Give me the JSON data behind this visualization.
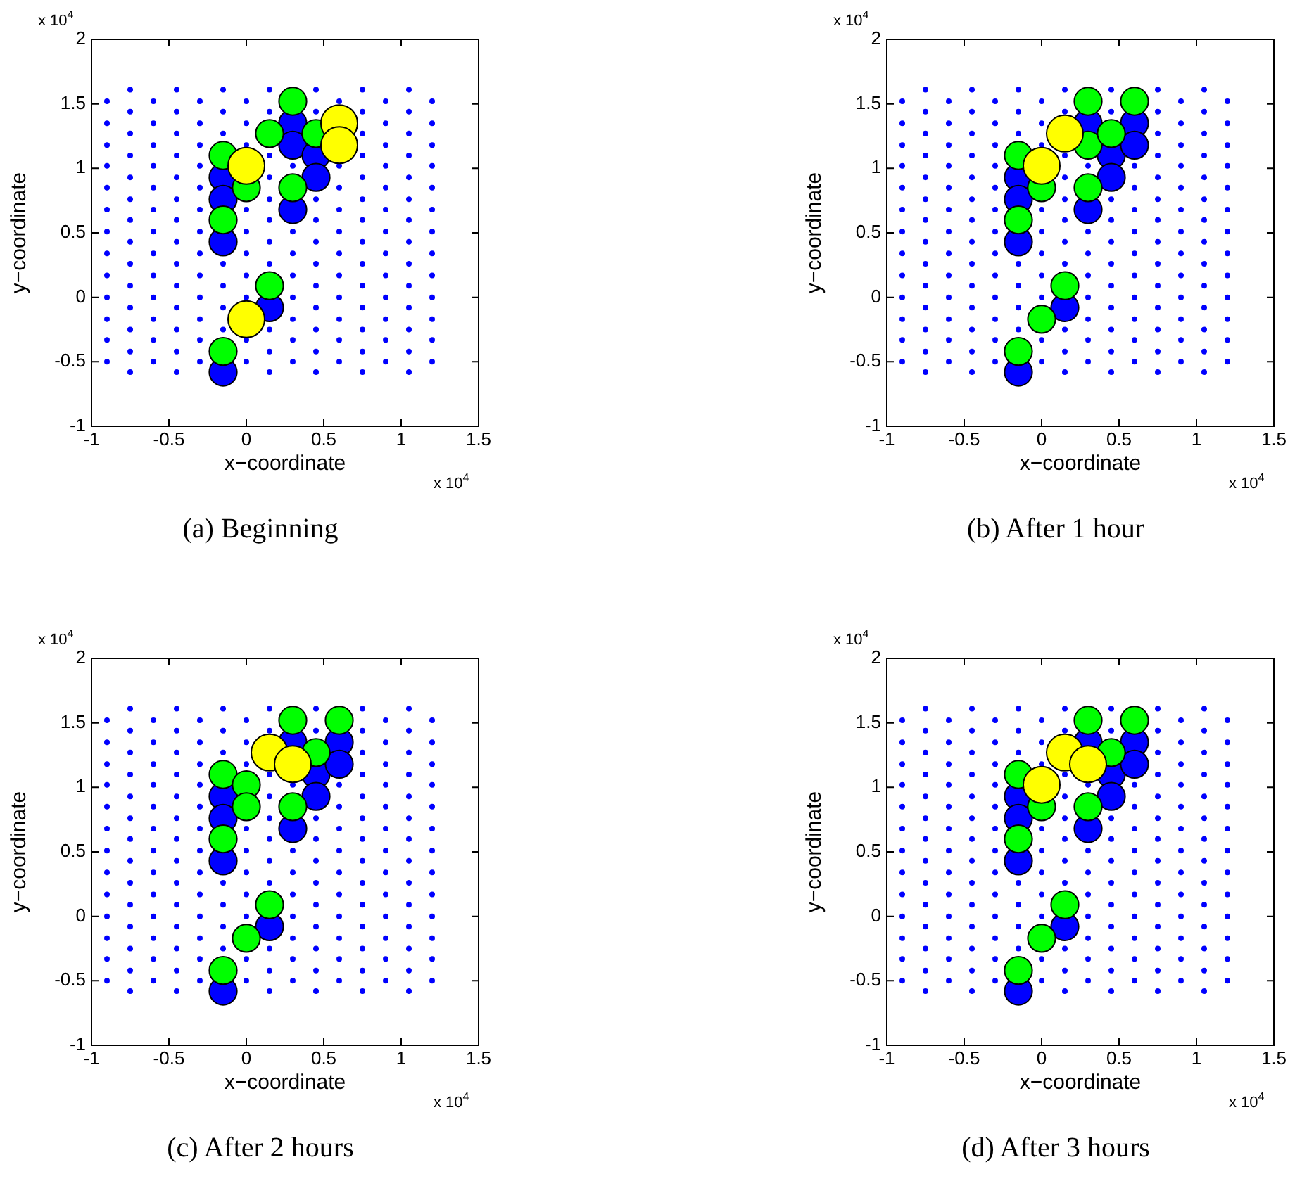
{
  "chart_data": [
    {
      "type": "bubble",
      "title": "(a) Beginning",
      "xlabel": "x−coordinate",
      "ylabel": "y−coordinate",
      "annotations": [
        "x 10$^{4}$",
        "x 10$^{4}$"
      ],
      "xlim": [
        -1,
        1.5
      ],
      "xticks": [
        -1,
        -0.5,
        0,
        0.5,
        1,
        1.5
      ],
      "ylim": [
        -1,
        2
      ],
      "yticks": [
        -1,
        -0.5,
        0,
        0.5,
        1,
        1.5,
        2
      ],
      "marker": "circle",
      "series": [
        {
          "type": "scatter",
          "color": "#0000ff",
          "x": [
            -0.9,
            -0.9,
            -0.9,
            -0.9,
            -0.9,
            -0.9,
            -0.9,
            -0.9,
            -0.9,
            -0.9,
            -0.9,
            -0.9,
            -0.9,
            -0.75,
            -0.75,
            -0.75,
            -0.75,
            -0.75,
            -0.75,
            -0.75,
            -0.75,
            -0.75,
            -0.75,
            -0.75,
            -0.75,
            -0.75,
            -0.75,
            -0.6,
            -0.6,
            -0.6,
            -0.6,
            -0.6,
            -0.6,
            -0.6,
            -0.6,
            -0.6,
            -0.6,
            -0.6,
            -0.6,
            -0.6,
            -0.45,
            -0.45,
            -0.45,
            -0.45,
            -0.45,
            -0.45,
            -0.45,
            -0.45,
            -0.45,
            -0.45,
            -0.45,
            -0.45,
            -0.45,
            -0.45,
            -0.3,
            -0.3,
            -0.3,
            -0.3,
            -0.3,
            -0.3,
            -0.3,
            -0.3,
            -0.3,
            -0.3,
            -0.3,
            -0.3,
            -0.3,
            -0.15,
            -0.15,
            -0.15,
            -0.15,
            -0.15,
            -0.15,
            -0.15,
            0,
            0,
            0,
            0,
            0,
            0,
            0,
            0,
            0,
            0,
            0.15,
            0.15,
            0.15,
            0.15,
            0.15,
            0.15,
            0.15,
            0.15,
            0.15,
            0.15,
            0.15,
            0.3,
            0.3,
            0.3,
            0.3,
            0.3,
            0.3,
            0.3,
            0.3,
            0.45,
            0.45,
            0.45,
            0.45,
            0.45,
            0.45,
            0.45,
            0.45,
            0.45,
            0.45,
            0.45,
            0.6,
            0.6,
            0.6,
            0.6,
            0.6,
            0.6,
            0.6,
            0.6,
            0.6,
            0.6,
            0.6,
            0.75,
            0.75,
            0.75,
            0.75,
            0.75,
            0.75,
            0.75,
            0.75,
            0.75,
            0.75,
            0.75,
            0.75,
            0.75,
            0.75,
            0.9,
            0.9,
            0.9,
            0.9,
            0.9,
            0.9,
            0.9,
            0.9,
            0.9,
            0.9,
            0.9,
            0.9,
            0.9,
            1.05,
            1.05,
            1.05,
            1.05,
            1.05,
            1.05,
            1.05,
            1.05,
            1.05,
            1.05,
            1.05,
            1.05,
            1.05,
            1.05,
            1.2,
            1.2,
            1.2,
            1.2,
            1.2,
            1.2,
            1.2,
            1.2,
            1.2,
            1.2,
            1.2,
            1.2,
            1.2
          ],
          "values": [
            -0.5,
            -0.33,
            -0.17,
            0,
            0.17,
            0.34,
            0.51,
            0.68,
            0.85,
            1.02,
            1.18,
            1.35,
            1.52,
            -0.58,
            -0.42,
            -0.25,
            -0.08,
            0.09,
            0.26,
            0.43,
            0.6,
            0.76,
            0.93,
            1.1,
            1.27,
            1.44,
            1.61,
            -0.5,
            -0.33,
            -0.17,
            0,
            0.17,
            0.34,
            0.51,
            0.68,
            0.85,
            1.02,
            1.18,
            1.35,
            1.52,
            -0.58,
            -0.42,
            -0.25,
            -0.08,
            0.09,
            0.26,
            0.43,
            0.6,
            0.76,
            0.93,
            1.1,
            1.27,
            1.44,
            1.61,
            -0.5,
            -0.33,
            -0.17,
            0,
            0.17,
            0.34,
            0.51,
            0.68,
            0.85,
            1.02,
            1.18,
            1.35,
            1.52,
            -0.25,
            -0.08,
            0.09,
            0.26,
            1.27,
            1.44,
            1.61,
            -0.5,
            -0.33,
            0,
            0.17,
            0.34,
            0.51,
            0.68,
            1.18,
            1.35,
            1.52,
            -0.58,
            -0.42,
            -0.25,
            0.26,
            0.43,
            0.6,
            0.76,
            0.93,
            1.1,
            1.44,
            1.61,
            -0.5,
            -0.33,
            -0.17,
            0,
            0.17,
            0.34,
            0.51,
            1.02,
            -0.58,
            -0.42,
            -0.25,
            -0.08,
            0.09,
            0.26,
            0.43,
            0.6,
            0.76,
            1.44,
            1.61,
            -0.5,
            -0.33,
            -0.17,
            0,
            0.17,
            0.34,
            0.51,
            0.68,
            0.85,
            1.02,
            1.52,
            -0.58,
            -0.42,
            -0.25,
            -0.08,
            0.09,
            0.26,
            0.43,
            0.6,
            0.76,
            0.93,
            1.1,
            1.27,
            1.44,
            1.61,
            -0.5,
            -0.33,
            -0.17,
            0,
            0.17,
            0.34,
            0.51,
            0.68,
            0.85,
            1.02,
            1.18,
            1.35,
            1.52,
            -0.58,
            -0.42,
            -0.25,
            -0.08,
            0.09,
            0.26,
            0.43,
            0.6,
            0.76,
            0.93,
            1.1,
            1.27,
            1.44,
            1.61,
            -0.5,
            -0.33,
            -0.17,
            0,
            0.17,
            0.34,
            0.51,
            0.68,
            0.85,
            1.02,
            1.18,
            1.35,
            1.52
          ]
        },
        {
          "color": "#0000ff",
          "x": [
            -0.15,
            -0.15,
            -0.15,
            0.15,
            -0.15,
            0.3,
            0.3,
            0.3,
            0.45,
            0.45
          ],
          "values": [
            0.93,
            0.76,
            0.43,
            -0.08,
            -0.58,
            1.35,
            1.18,
            0.68,
            1.1,
            0.93
          ],
          "sizes": [
            0.57,
            0.57,
            0.57,
            0.57,
            0.57,
            0.57,
            0.57,
            0.57,
            0.57,
            0.57
          ]
        },
        {
          "color": "#00ff00",
          "x": [
            -0.15,
            -0.15,
            0,
            0.15,
            0.3,
            0.3,
            0.45,
            0.15,
            -0.15
          ],
          "values": [
            1.1,
            0.6,
            0.85,
            1.27,
            1.52,
            0.85,
            1.27,
            0.09,
            -0.42
          ],
          "sizes": [
            0.57,
            0.57,
            0.57,
            0.57,
            0.57,
            0.57,
            0.57,
            0.57,
            0.57
          ]
        },
        {
          "color": "#ffff00",
          "x": [
            0,
            0.6,
            0.6,
            0
          ],
          "values": [
            1.02,
            1.35,
            1.18,
            -0.17
          ],
          "sizes": [
            1,
            1,
            1,
            1
          ]
        }
      ]
    },
    {
      "type": "bubble",
      "title": "(b) After 1 hour",
      "xlabel": "x−coordinate",
      "ylabel": "y−coordinate",
      "annotations": [
        "x 10$^{4}$",
        "x 10$^{4}$"
      ],
      "xlim": [
        -1,
        1.5
      ],
      "xticks": [
        -1,
        -0.5,
        0,
        0.5,
        1,
        1.5
      ],
      "ylim": [
        -1,
        2
      ],
      "yticks": [
        -1,
        -0.5,
        0,
        0.5,
        1,
        1.5,
        2
      ],
      "marker": "circle",
      "series": [
        {
          "type": "scatter",
          "color": "#0000ff",
          "x": [
            -0.9,
            -0.9,
            -0.9,
            -0.9,
            -0.9,
            -0.9,
            -0.9,
            -0.9,
            -0.9,
            -0.9,
            -0.9,
            -0.9,
            -0.9,
            -0.75,
            -0.75,
            -0.75,
            -0.75,
            -0.75,
            -0.75,
            -0.75,
            -0.75,
            -0.75,
            -0.75,
            -0.75,
            -0.75,
            -0.75,
            -0.75,
            -0.6,
            -0.6,
            -0.6,
            -0.6,
            -0.6,
            -0.6,
            -0.6,
            -0.6,
            -0.6,
            -0.6,
            -0.6,
            -0.6,
            -0.6,
            -0.45,
            -0.45,
            -0.45,
            -0.45,
            -0.45,
            -0.45,
            -0.45,
            -0.45,
            -0.45,
            -0.45,
            -0.45,
            -0.45,
            -0.45,
            -0.45,
            -0.3,
            -0.3,
            -0.3,
            -0.3,
            -0.3,
            -0.3,
            -0.3,
            -0.3,
            -0.3,
            -0.3,
            -0.3,
            -0.3,
            -0.3,
            -0.15,
            -0.15,
            -0.15,
            -0.15,
            -0.15,
            -0.15,
            -0.15,
            0,
            0,
            0,
            0,
            0,
            0,
            0,
            0,
            0,
            0,
            0.15,
            0.15,
            0.15,
            0.15,
            0.15,
            0.15,
            0.15,
            0.15,
            0.15,
            0.15,
            0.15,
            0.3,
            0.3,
            0.3,
            0.3,
            0.3,
            0.3,
            0.3,
            0.3,
            0.45,
            0.45,
            0.45,
            0.45,
            0.45,
            0.45,
            0.45,
            0.45,
            0.45,
            0.45,
            0.45,
            0.6,
            0.6,
            0.6,
            0.6,
            0.6,
            0.6,
            0.6,
            0.6,
            0.6,
            0.6,
            0.75,
            0.75,
            0.75,
            0.75,
            0.75,
            0.75,
            0.75,
            0.75,
            0.75,
            0.75,
            0.75,
            0.75,
            0.75,
            0.75,
            0.9,
            0.9,
            0.9,
            0.9,
            0.9,
            0.9,
            0.9,
            0.9,
            0.9,
            0.9,
            0.9,
            0.9,
            0.9,
            1.05,
            1.05,
            1.05,
            1.05,
            1.05,
            1.05,
            1.05,
            1.05,
            1.05,
            1.05,
            1.05,
            1.05,
            1.05,
            1.05,
            1.2,
            1.2,
            1.2,
            1.2,
            1.2,
            1.2,
            1.2,
            1.2,
            1.2,
            1.2,
            1.2,
            1.2,
            1.2
          ],
          "values": [
            -0.5,
            -0.33,
            -0.17,
            0,
            0.17,
            0.34,
            0.51,
            0.68,
            0.85,
            1.02,
            1.18,
            1.35,
            1.52,
            -0.58,
            -0.42,
            -0.25,
            -0.08,
            0.09,
            0.26,
            0.43,
            0.6,
            0.76,
            0.93,
            1.1,
            1.27,
            1.44,
            1.61,
            -0.5,
            -0.33,
            -0.17,
            0,
            0.17,
            0.34,
            0.51,
            0.68,
            0.85,
            1.02,
            1.18,
            1.35,
            1.52,
            -0.58,
            -0.42,
            -0.25,
            -0.08,
            0.09,
            0.26,
            0.43,
            0.6,
            0.76,
            0.93,
            1.1,
            1.27,
            1.44,
            1.61,
            -0.5,
            -0.33,
            -0.17,
            0,
            0.17,
            0.34,
            0.51,
            0.68,
            0.85,
            1.02,
            1.18,
            1.35,
            1.52,
            -0.25,
            -0.08,
            0.09,
            0.26,
            1.27,
            1.44,
            1.61,
            -0.5,
            -0.33,
            0,
            0.17,
            0.34,
            0.51,
            0.68,
            1.18,
            1.35,
            1.52,
            -0.58,
            -0.42,
            -0.25,
            0.26,
            0.43,
            0.6,
            0.76,
            0.93,
            1.1,
            1.44,
            1.61,
            -0.5,
            -0.33,
            -0.17,
            0,
            0.17,
            0.34,
            0.51,
            1.02,
            -0.58,
            -0.42,
            -0.25,
            -0.08,
            0.09,
            0.26,
            0.43,
            0.6,
            0.76,
            1.44,
            1.61,
            -0.5,
            -0.33,
            -0.17,
            0,
            0.17,
            0.34,
            0.51,
            0.68,
            0.85,
            1.02,
            -0.58,
            -0.42,
            -0.25,
            -0.08,
            0.09,
            0.26,
            0.43,
            0.6,
            0.76,
            0.93,
            1.1,
            1.27,
            1.44,
            1.61,
            -0.5,
            -0.33,
            -0.17,
            0,
            0.17,
            0.34,
            0.51,
            0.68,
            0.85,
            1.02,
            1.18,
            1.35,
            1.52,
            -0.58,
            -0.42,
            -0.25,
            -0.08,
            0.09,
            0.26,
            0.43,
            0.6,
            0.76,
            0.93,
            1.1,
            1.27,
            1.44,
            1.61,
            -0.5,
            -0.33,
            -0.17,
            0,
            0.17,
            0.34,
            0.51,
            0.68,
            0.85,
            1.02,
            1.18,
            1.35,
            1.52
          ]
        },
        {
          "color": "#0000ff",
          "x": [
            -0.15,
            -0.15,
            -0.15,
            -0.15,
            0.3,
            0.3,
            0.45,
            0.45,
            0.6,
            0.6,
            0.15
          ],
          "values": [
            0.93,
            0.76,
            0.43,
            -0.58,
            1.35,
            0.68,
            1.1,
            0.93,
            1.35,
            1.18,
            -0.08
          ],
          "sizes": [
            0.57,
            0.57,
            0.57,
            0.57,
            0.57,
            0.57,
            0.57,
            0.57,
            0.57,
            0.57,
            0.57
          ]
        },
        {
          "color": "#00ff00",
          "x": [
            -0.15,
            -0.15,
            -0.15,
            0,
            0,
            0.3,
            0.3,
            0.3,
            0.45,
            0.6,
            0.15
          ],
          "values": [
            1.1,
            0.6,
            -0.42,
            0.85,
            -0.17,
            1.52,
            1.18,
            0.85,
            1.27,
            1.52,
            0.09
          ],
          "sizes": [
            0.57,
            0.57,
            0.57,
            0.57,
            0.57,
            0.57,
            0.57,
            0.57,
            0.57,
            0.57,
            0.57
          ]
        },
        {
          "color": "#ffff00",
          "x": [
            0,
            0.15
          ],
          "values": [
            1.02,
            1.27
          ],
          "sizes": [
            1,
            1
          ]
        }
      ]
    },
    {
      "type": "bubble",
      "title": "(c) After 2 hours",
      "xlabel": "x−coordinate",
      "ylabel": "y−coordinate",
      "annotations": [
        "x 10$^{4}$",
        "x 10$^{4}$"
      ],
      "xlim": [
        -1,
        1.5
      ],
      "xticks": [
        -1,
        -0.5,
        0,
        0.5,
        1,
        1.5
      ],
      "ylim": [
        -1,
        2
      ],
      "yticks": [
        -1,
        -0.5,
        0,
        0.5,
        1,
        1.5,
        2
      ],
      "marker": "circle",
      "series": [
        {
          "type": "scatter",
          "color": "#0000ff",
          "x": [
            -0.9,
            -0.9,
            -0.9,
            -0.9,
            -0.9,
            -0.9,
            -0.9,
            -0.9,
            -0.9,
            -0.9,
            -0.9,
            -0.9,
            -0.9,
            -0.75,
            -0.75,
            -0.75,
            -0.75,
            -0.75,
            -0.75,
            -0.75,
            -0.75,
            -0.75,
            -0.75,
            -0.75,
            -0.75,
            -0.75,
            -0.75,
            -0.6,
            -0.6,
            -0.6,
            -0.6,
            -0.6,
            -0.6,
            -0.6,
            -0.6,
            -0.6,
            -0.6,
            -0.6,
            -0.6,
            -0.6,
            -0.45,
            -0.45,
            -0.45,
            -0.45,
            -0.45,
            -0.45,
            -0.45,
            -0.45,
            -0.45,
            -0.45,
            -0.45,
            -0.45,
            -0.45,
            -0.45,
            -0.3,
            -0.3,
            -0.3,
            -0.3,
            -0.3,
            -0.3,
            -0.3,
            -0.3,
            -0.3,
            -0.3,
            -0.3,
            -0.3,
            -0.3,
            -0.15,
            -0.15,
            -0.15,
            -0.15,
            -0.15,
            -0.15,
            -0.15,
            0,
            0,
            0,
            0,
            0,
            0,
            0,
            0,
            0,
            0,
            0.15,
            0.15,
            0.15,
            0.15,
            0.15,
            0.15,
            0.15,
            0.15,
            0.15,
            0.15,
            0.15,
            0.3,
            0.3,
            0.3,
            0.3,
            0.3,
            0.3,
            0.3,
            0.3,
            0.45,
            0.45,
            0.45,
            0.45,
            0.45,
            0.45,
            0.45,
            0.45,
            0.45,
            0.45,
            0.45,
            0.6,
            0.6,
            0.6,
            0.6,
            0.6,
            0.6,
            0.6,
            0.6,
            0.6,
            0.6,
            0.75,
            0.75,
            0.75,
            0.75,
            0.75,
            0.75,
            0.75,
            0.75,
            0.75,
            0.75,
            0.75,
            0.75,
            0.75,
            0.75,
            0.9,
            0.9,
            0.9,
            0.9,
            0.9,
            0.9,
            0.9,
            0.9,
            0.9,
            0.9,
            0.9,
            0.9,
            0.9,
            1.05,
            1.05,
            1.05,
            1.05,
            1.05,
            1.05,
            1.05,
            1.05,
            1.05,
            1.05,
            1.05,
            1.05,
            1.05,
            1.05,
            1.2,
            1.2,
            1.2,
            1.2,
            1.2,
            1.2,
            1.2,
            1.2,
            1.2,
            1.2,
            1.2,
            1.2,
            1.2
          ],
          "values": [
            -0.5,
            -0.33,
            -0.17,
            0,
            0.17,
            0.34,
            0.51,
            0.68,
            0.85,
            1.02,
            1.18,
            1.35,
            1.52,
            -0.58,
            -0.42,
            -0.25,
            -0.08,
            0.09,
            0.26,
            0.43,
            0.6,
            0.76,
            0.93,
            1.1,
            1.27,
            1.44,
            1.61,
            -0.5,
            -0.33,
            -0.17,
            0,
            0.17,
            0.34,
            0.51,
            0.68,
            0.85,
            1.02,
            1.18,
            1.35,
            1.52,
            -0.58,
            -0.42,
            -0.25,
            -0.08,
            0.09,
            0.26,
            0.43,
            0.6,
            0.76,
            0.93,
            1.1,
            1.27,
            1.44,
            1.61,
            -0.5,
            -0.33,
            -0.17,
            0,
            0.17,
            0.34,
            0.51,
            0.68,
            0.85,
            1.02,
            1.18,
            1.35,
            1.52,
            -0.25,
            -0.08,
            0.09,
            0.26,
            1.27,
            1.44,
            1.61,
            -0.5,
            -0.33,
            0,
            0.17,
            0.34,
            0.51,
            0.68,
            1.18,
            1.35,
            1.52,
            -0.58,
            -0.42,
            -0.25,
            0.26,
            0.43,
            0.6,
            0.76,
            0.93,
            1.1,
            1.44,
            1.61,
            -0.5,
            -0.33,
            -0.17,
            0,
            0.17,
            0.34,
            0.51,
            1.02,
            -0.58,
            -0.42,
            -0.25,
            -0.08,
            0.09,
            0.26,
            0.43,
            0.6,
            0.76,
            1.44,
            1.61,
            -0.5,
            -0.33,
            -0.17,
            0,
            0.17,
            0.34,
            0.51,
            0.68,
            0.85,
            1.02,
            -0.58,
            -0.42,
            -0.25,
            -0.08,
            0.09,
            0.26,
            0.43,
            0.6,
            0.76,
            0.93,
            1.1,
            1.27,
            1.44,
            1.61,
            -0.5,
            -0.33,
            -0.17,
            0,
            0.17,
            0.34,
            0.51,
            0.68,
            0.85,
            1.02,
            1.18,
            1.35,
            1.52,
            -0.58,
            -0.42,
            -0.25,
            -0.08,
            0.09,
            0.26,
            0.43,
            0.6,
            0.76,
            0.93,
            1.1,
            1.27,
            1.44,
            1.61,
            -0.5,
            -0.33,
            -0.17,
            0,
            0.17,
            0.34,
            0.51,
            0.68,
            0.85,
            1.02,
            1.18,
            1.35,
            1.52
          ]
        },
        {
          "color": "#0000ff",
          "x": [
            -0.15,
            -0.15,
            -0.15,
            -0.15,
            0.3,
            0.3,
            0.45,
            0.45,
            0.6,
            0.6,
            0.15
          ],
          "values": [
            0.93,
            0.76,
            0.43,
            -0.58,
            1.35,
            0.68,
            1.1,
            0.93,
            1.35,
            1.18,
            -0.08
          ],
          "sizes": [
            0.57,
            0.57,
            0.57,
            0.57,
            0.57,
            0.57,
            0.57,
            0.57,
            0.57,
            0.57,
            0.57
          ]
        },
        {
          "color": "#00ff00",
          "x": [
            -0.15,
            -0.15,
            -0.15,
            0,
            0,
            0,
            0.3,
            0.3,
            0.45,
            0.6,
            0.15
          ],
          "values": [
            1.1,
            0.6,
            -0.42,
            1.02,
            0.85,
            -0.17,
            1.52,
            0.85,
            1.27,
            1.52,
            0.09
          ],
          "sizes": [
            0.57,
            0.57,
            0.57,
            0.57,
            0.57,
            0.57,
            0.57,
            0.57,
            0.57,
            0.57,
            0.57
          ]
        },
        {
          "color": "#ffff00",
          "x": [
            0.15,
            0.3
          ],
          "values": [
            1.27,
            1.18
          ],
          "sizes": [
            1,
            1
          ]
        }
      ]
    },
    {
      "type": "bubble",
      "title": "(d) After 3 hours",
      "xlabel": "x−coordinate",
      "ylabel": "y−coordinate",
      "annotations": [
        "x 10$^{4}$",
        "x 10$^{4}$"
      ],
      "xlim": [
        -1,
        1.5
      ],
      "xticks": [
        -1,
        -0.5,
        0,
        0.5,
        1,
        1.5
      ],
      "ylim": [
        -1,
        2
      ],
      "yticks": [
        -1,
        -0.5,
        0,
        0.5,
        1,
        1.5,
        2
      ],
      "marker": "circle",
      "series": [
        {
          "type": "scatter",
          "color": "#0000ff",
          "x": [
            -0.9,
            -0.9,
            -0.9,
            -0.9,
            -0.9,
            -0.9,
            -0.9,
            -0.9,
            -0.9,
            -0.9,
            -0.9,
            -0.9,
            -0.9,
            -0.75,
            -0.75,
            -0.75,
            -0.75,
            -0.75,
            -0.75,
            -0.75,
            -0.75,
            -0.75,
            -0.75,
            -0.75,
            -0.75,
            -0.75,
            -0.75,
            -0.6,
            -0.6,
            -0.6,
            -0.6,
            -0.6,
            -0.6,
            -0.6,
            -0.6,
            -0.6,
            -0.6,
            -0.6,
            -0.6,
            -0.6,
            -0.45,
            -0.45,
            -0.45,
            -0.45,
            -0.45,
            -0.45,
            -0.45,
            -0.45,
            -0.45,
            -0.45,
            -0.45,
            -0.45,
            -0.45,
            -0.45,
            -0.3,
            -0.3,
            -0.3,
            -0.3,
            -0.3,
            -0.3,
            -0.3,
            -0.3,
            -0.3,
            -0.3,
            -0.3,
            -0.3,
            -0.3,
            -0.15,
            -0.15,
            -0.15,
            -0.15,
            -0.15,
            -0.15,
            -0.15,
            0,
            0,
            0,
            0,
            0,
            0,
            0,
            0,
            0,
            0,
            0.15,
            0.15,
            0.15,
            0.15,
            0.15,
            0.15,
            0.15,
            0.15,
            0.15,
            0.15,
            0.15,
            0.3,
            0.3,
            0.3,
            0.3,
            0.3,
            0.3,
            0.3,
            0.3,
            0.45,
            0.45,
            0.45,
            0.45,
            0.45,
            0.45,
            0.45,
            0.45,
            0.45,
            0.45,
            0.45,
            0.6,
            0.6,
            0.6,
            0.6,
            0.6,
            0.6,
            0.6,
            0.6,
            0.6,
            0.6,
            0.75,
            0.75,
            0.75,
            0.75,
            0.75,
            0.75,
            0.75,
            0.75,
            0.75,
            0.75,
            0.75,
            0.75,
            0.75,
            0.75,
            0.9,
            0.9,
            0.9,
            0.9,
            0.9,
            0.9,
            0.9,
            0.9,
            0.9,
            0.9,
            0.9,
            0.9,
            0.9,
            1.05,
            1.05,
            1.05,
            1.05,
            1.05,
            1.05,
            1.05,
            1.05,
            1.05,
            1.05,
            1.05,
            1.05,
            1.05,
            1.05,
            1.2,
            1.2,
            1.2,
            1.2,
            1.2,
            1.2,
            1.2,
            1.2,
            1.2,
            1.2,
            1.2,
            1.2,
            1.2
          ],
          "values": [
            -0.5,
            -0.33,
            -0.17,
            0,
            0.17,
            0.34,
            0.51,
            0.68,
            0.85,
            1.02,
            1.18,
            1.35,
            1.52,
            -0.58,
            -0.42,
            -0.25,
            -0.08,
            0.09,
            0.26,
            0.43,
            0.6,
            0.76,
            0.93,
            1.1,
            1.27,
            1.44,
            1.61,
            -0.5,
            -0.33,
            -0.17,
            0,
            0.17,
            0.34,
            0.51,
            0.68,
            0.85,
            1.02,
            1.18,
            1.35,
            1.52,
            -0.58,
            -0.42,
            -0.25,
            -0.08,
            0.09,
            0.26,
            0.43,
            0.6,
            0.76,
            0.93,
            1.1,
            1.27,
            1.44,
            1.61,
            -0.5,
            -0.33,
            -0.17,
            0,
            0.17,
            0.34,
            0.51,
            0.68,
            0.85,
            1.02,
            1.18,
            1.35,
            1.52,
            -0.25,
            -0.08,
            0.09,
            0.26,
            1.27,
            1.44,
            1.61,
            -0.5,
            -0.33,
            0,
            0.17,
            0.34,
            0.51,
            0.68,
            1.18,
            1.35,
            1.52,
            -0.58,
            -0.42,
            -0.25,
            0.26,
            0.43,
            0.6,
            0.76,
            0.93,
            1.1,
            1.44,
            1.61,
            -0.5,
            -0.33,
            -0.17,
            0,
            0.17,
            0.34,
            0.51,
            1.02,
            -0.58,
            -0.42,
            -0.25,
            -0.08,
            0.09,
            0.26,
            0.43,
            0.6,
            0.76,
            1.44,
            1.61,
            -0.5,
            -0.33,
            -0.17,
            0,
            0.17,
            0.34,
            0.51,
            0.68,
            0.85,
            1.02,
            -0.58,
            -0.42,
            -0.25,
            -0.08,
            0.09,
            0.26,
            0.43,
            0.6,
            0.76,
            0.93,
            1.1,
            1.27,
            1.44,
            1.61,
            -0.5,
            -0.33,
            -0.17,
            0,
            0.17,
            0.34,
            0.51,
            0.68,
            0.85,
            1.02,
            1.18,
            1.35,
            1.52,
            -0.58,
            -0.42,
            -0.25,
            -0.08,
            0.09,
            0.26,
            0.43,
            0.6,
            0.76,
            0.93,
            1.1,
            1.27,
            1.44,
            1.61,
            -0.5,
            -0.33,
            -0.17,
            0,
            0.17,
            0.34,
            0.51,
            0.68,
            0.85,
            1.02,
            1.18,
            1.35,
            1.52
          ]
        },
        {
          "color": "#0000ff",
          "x": [
            -0.15,
            -0.15,
            -0.15,
            -0.15,
            0.3,
            0.3,
            0.45,
            0.45,
            0.6,
            0.6,
            0.15
          ],
          "values": [
            0.93,
            0.76,
            0.43,
            -0.58,
            1.35,
            0.68,
            1.1,
            0.93,
            1.35,
            1.18,
            -0.08
          ],
          "sizes": [
            0.57,
            0.57,
            0.57,
            0.57,
            0.57,
            0.57,
            0.57,
            0.57,
            0.57,
            0.57,
            0.57
          ]
        },
        {
          "color": "#00ff00",
          "x": [
            -0.15,
            -0.15,
            -0.15,
            0,
            0,
            0.3,
            0.3,
            0.45,
            0.6,
            0.15
          ],
          "values": [
            1.1,
            0.6,
            -0.42,
            0.85,
            -0.17,
            1.52,
            0.85,
            1.27,
            1.52,
            0.09
          ],
          "sizes": [
            0.57,
            0.57,
            0.57,
            0.57,
            0.57,
            0.57,
            0.57,
            0.57,
            0.57,
            0.57
          ]
        },
        {
          "color": "#ffff00",
          "x": [
            0,
            0.15,
            0.3
          ],
          "values": [
            1.02,
            1.27,
            1.18
          ],
          "sizes": [
            1,
            1,
            1
          ]
        }
      ]
    }
  ]
}
